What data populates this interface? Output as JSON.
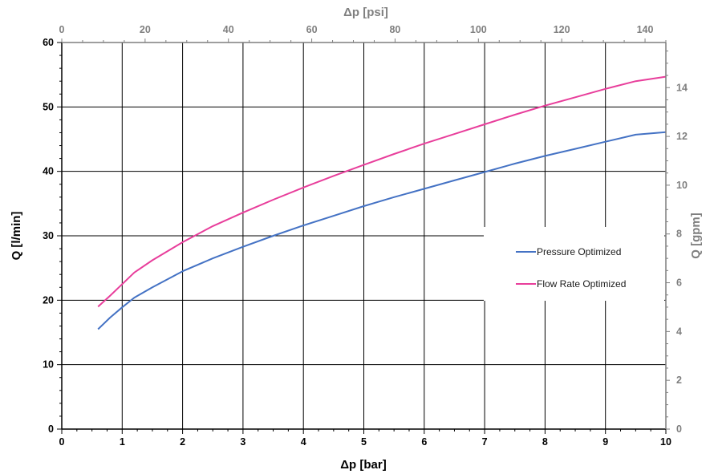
{
  "chart_data": {
    "type": "line",
    "xlabel": "Δp [bar]",
    "ylabel": "Q [l/min]",
    "x2label": "Δp [psi]",
    "y2label": "Q [gpm]",
    "xlim": [
      0,
      10
    ],
    "ylim": [
      0,
      60
    ],
    "x2lim": [
      0,
      145
    ],
    "y2lim": [
      0,
      15.85
    ],
    "x_ticks": [
      "0",
      "1",
      "2",
      "3",
      "4",
      "5",
      "6",
      "7",
      "8",
      "9",
      "10"
    ],
    "y_ticks": [
      "0",
      "10",
      "20",
      "30",
      "40",
      "50",
      "60"
    ],
    "x2_ticks": [
      "0",
      "20",
      "40",
      "60",
      "80",
      "100",
      "120",
      "140"
    ],
    "y2_ticks": [
      "0",
      "2",
      "4",
      "6",
      "8",
      "10",
      "12",
      "14"
    ],
    "grid": true,
    "legend_position": "right",
    "series": [
      {
        "name": "Pressure Optimized",
        "color": "#4472c4",
        "x": [
          0.6,
          0.8,
          1.0,
          1.2,
          1.5,
          2.0,
          2.5,
          3.0,
          3.5,
          4.0,
          4.5,
          5.0,
          5.5,
          6.0,
          6.5,
          7.0,
          7.5,
          8.0,
          8.5,
          9.0,
          9.5,
          10.0
        ],
        "y": [
          15.5,
          17.3,
          18.9,
          20.4,
          22.0,
          24.5,
          26.5,
          28.3,
          30.0,
          31.6,
          33.1,
          34.6,
          36.0,
          37.3,
          38.6,
          39.9,
          41.2,
          42.4,
          43.5,
          44.6,
          45.7,
          46.1
        ]
      },
      {
        "name": "Flow Rate Optimized",
        "color": "#e83e9b",
        "x": [
          0.6,
          0.8,
          1.0,
          1.2,
          1.5,
          2.0,
          2.5,
          3.0,
          3.5,
          4.0,
          4.5,
          5.0,
          5.5,
          6.0,
          6.5,
          7.0,
          7.5,
          8.0,
          8.5,
          9.0,
          9.5,
          10.0
        ],
        "y": [
          19.0,
          20.7,
          22.5,
          24.3,
          26.2,
          29.0,
          31.5,
          33.6,
          35.6,
          37.5,
          39.3,
          41.0,
          42.7,
          44.3,
          45.8,
          47.3,
          48.8,
          50.2,
          51.5,
          52.8,
          54.0,
          54.7
        ]
      }
    ]
  }
}
